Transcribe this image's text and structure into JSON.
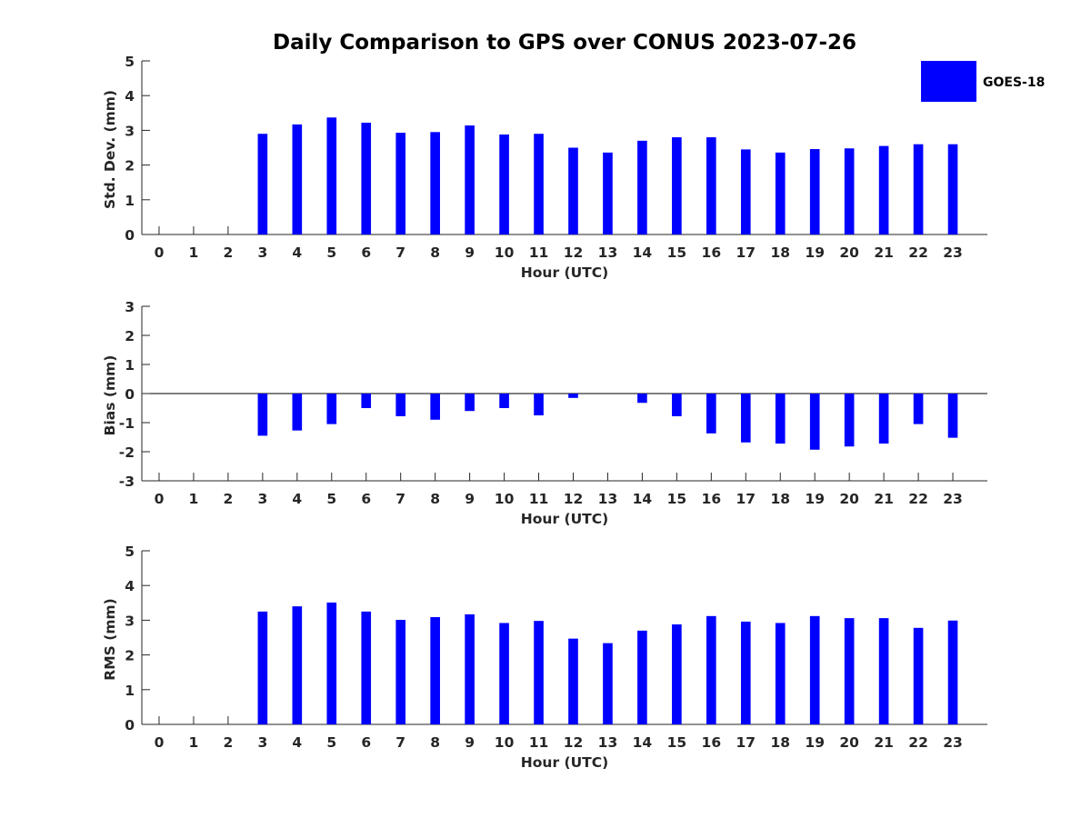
{
  "chart_data": {
    "title": "Daily Comparison to GPS over CONUS 2023-07-26",
    "type": "bar",
    "legend": {
      "label": "GOES-18",
      "color": "#0000ff",
      "placement": "top-right (outside)"
    },
    "panels": [
      {
        "type": "bar",
        "ylabel": "Std. Dev. (mm)",
        "xlabel": "Hour (UTC)",
        "ylim": [
          0,
          5
        ],
        "yticks": [
          0,
          1,
          2,
          3,
          4,
          5
        ],
        "categories": [
          0,
          1,
          2,
          3,
          4,
          5,
          6,
          7,
          8,
          9,
          10,
          11,
          12,
          13,
          14,
          15,
          16,
          17,
          18,
          19,
          20,
          21,
          22,
          23
        ],
        "series": [
          {
            "name": "GOES-18",
            "color": "#0000ff",
            "values": [
              null,
              null,
              null,
              2.9,
              3.17,
              3.37,
              3.22,
              2.93,
              2.95,
              3.14,
              2.88,
              2.9,
              2.5,
              2.36,
              2.7,
              2.8,
              2.8,
              2.45,
              2.36,
              2.46,
              2.48,
              2.55,
              2.6,
              2.6
            ]
          }
        ]
      },
      {
        "type": "bar",
        "ylabel": "Bias (mm)",
        "xlabel": "Hour (UTC)",
        "ylim": [
          -3,
          3
        ],
        "yticks": [
          -3,
          -2,
          -1,
          0,
          1,
          2,
          3
        ],
        "categories": [
          0,
          1,
          2,
          3,
          4,
          5,
          6,
          7,
          8,
          9,
          10,
          11,
          12,
          13,
          14,
          15,
          16,
          17,
          18,
          19,
          20,
          21,
          22,
          23
        ],
        "series": [
          {
            "name": "GOES-18",
            "color": "#0000ff",
            "values": [
              null,
              null,
              null,
              -1.45,
              -1.27,
              -1.05,
              -0.5,
              -0.78,
              -0.9,
              -0.6,
              -0.5,
              -0.75,
              -0.15,
              0.0,
              -0.32,
              -0.78,
              -1.37,
              -1.68,
              -1.72,
              -1.93,
              -1.82,
              -1.72,
              -1.05,
              -1.52
            ]
          }
        ]
      },
      {
        "type": "bar",
        "ylabel": "RMS (mm)",
        "xlabel": "Hour (UTC)",
        "ylim": [
          0,
          5
        ],
        "yticks": [
          0,
          1,
          2,
          3,
          4,
          5
        ],
        "categories": [
          0,
          1,
          2,
          3,
          4,
          5,
          6,
          7,
          8,
          9,
          10,
          11,
          12,
          13,
          14,
          15,
          16,
          17,
          18,
          19,
          20,
          21,
          22,
          23
        ],
        "series": [
          {
            "name": "GOES-18",
            "color": "#0000ff",
            "values": [
              null,
              null,
              null,
              3.25,
              3.4,
              3.51,
              3.25,
              3.01,
              3.09,
              3.17,
              2.92,
              2.98,
              2.47,
              2.34,
              2.7,
              2.88,
              3.12,
              2.96,
              2.92,
              3.12,
              3.06,
              3.06,
              2.78,
              2.99
            ]
          }
        ]
      }
    ]
  }
}
